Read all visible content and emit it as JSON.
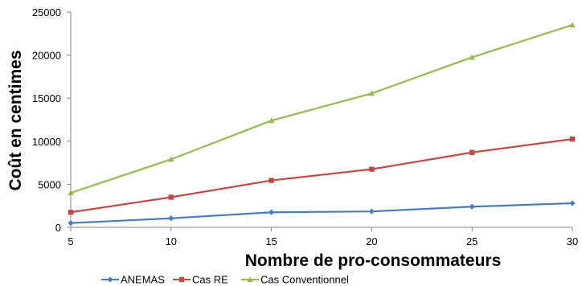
{
  "chart_data": {
    "type": "line",
    "title": "",
    "xlabel": "Nombre de pro-consommateurs",
    "ylabel": "Coût en centimes",
    "x": [
      5,
      10,
      15,
      20,
      25,
      30
    ],
    "xlim": [
      5,
      30
    ],
    "ylim": [
      0,
      25000
    ],
    "x_ticks": [
      "5",
      "10",
      "15",
      "20",
      "25",
      "30"
    ],
    "y_ticks": [
      "0",
      "5000",
      "10000",
      "15000",
      "20000",
      "25000"
    ],
    "grid": false,
    "legend_position": "bottom",
    "series": [
      {
        "name": "ANEMAS",
        "color": "#4a7ebb",
        "marker": "diamond",
        "values": [
          500,
          1050,
          1750,
          1850,
          2400,
          2800
        ]
      },
      {
        "name": "Cas RE",
        "color": "#be4b48",
        "marker": "square",
        "values": [
          1750,
          3500,
          5450,
          6750,
          8700,
          10250
        ]
      },
      {
        "name": "Cas Conventionnel",
        "color": "#98b954",
        "marker": "triangle",
        "values": [
          4000,
          7900,
          12400,
          15550,
          19750,
          23500
        ]
      }
    ]
  }
}
